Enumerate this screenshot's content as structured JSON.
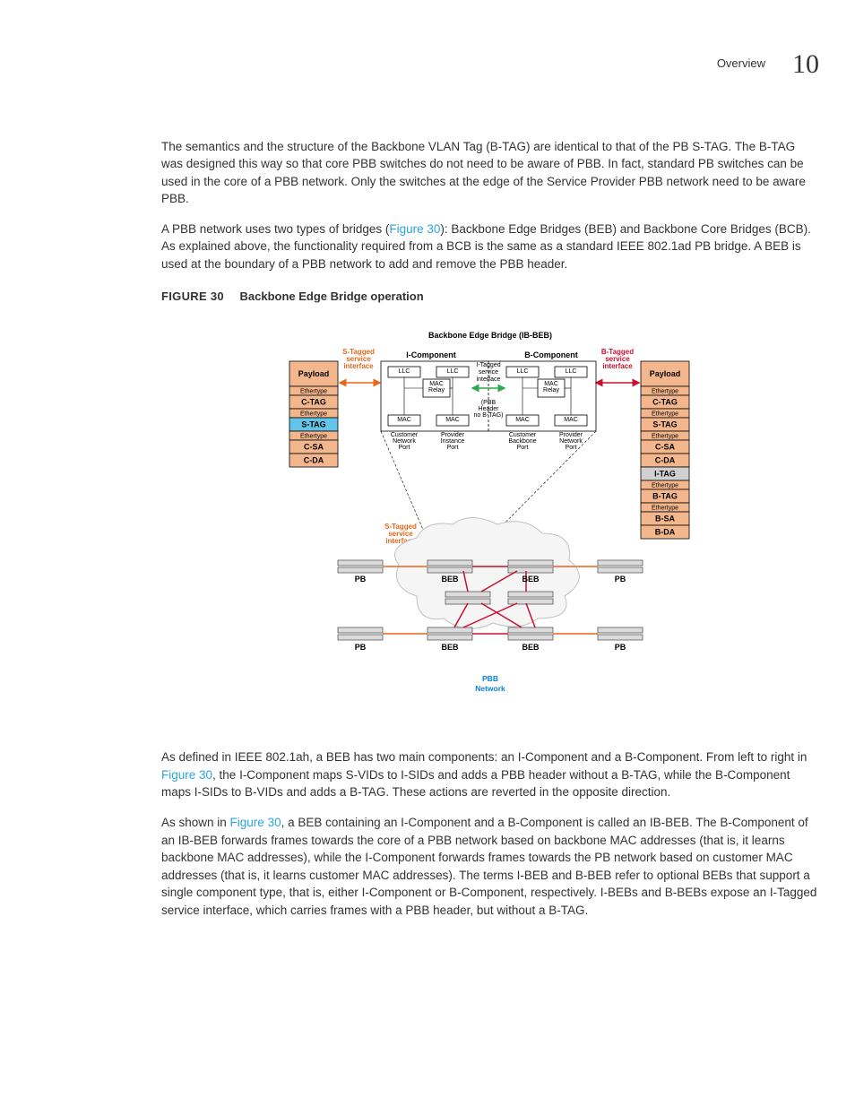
{
  "header": {
    "overview": "Overview",
    "page_num": "10"
  },
  "paragraphs": {
    "p1": "The semantics and the structure of the Backbone VLAN Tag (B-TAG) are identical to that of the PB S-TAG. The B-TAG was designed this way so that core PBB switches do not need to be aware of PBB. In fact, standard PB switches can be used in the core of a PBB network. Only the switches at the edge of the Service Provider PBB network need to be aware PBB.",
    "p2a": "A PBB network uses two types of bridges (",
    "p2link": "Figure 30",
    "p2b": "): Backbone Edge Bridges (BEB) and Backbone Core Bridges (BCB). As explained above, the functionality required from a BCB is the same as a standard IEEE 802.1ad PB bridge. A BEB is used at the boundary of a PBB network to add and remove the PBB header.",
    "p3a": "As defined in IEEE 802.1ah, a BEB has two main components: an I-Component and a B-Component. From left to right in ",
    "p3link": "Figure 30",
    "p3b": ", the I-Component maps S-VIDs to I-SIDs and adds a PBB header without a B-TAG, while the B-Component maps I-SIDs to B-VIDs and adds a B-TAG. These actions are reverted in the opposite direction.",
    "p4a": "As shown in ",
    "p4link": "Figure 30",
    "p4b": ", a BEB containing an I-Component and a B-Component is called an IB-BEB. The B-Component of an IB-BEB forwards frames towards the core of a PBB network based on backbone MAC addresses (that is, it learns backbone MAC addresses), while the I-Component forwards frames towards the PB network based on customer MAC addresses (that is, it learns customer MAC addresses). The terms I-BEB and B-BEB refer to optional BEBs that support a single component type, that is, either I-Component or B-Component, respectively. I-BEBs and B-BEBs expose an I-Tagged service interface, which carries frames with a PBB header, but without a B-TAG."
  },
  "figure": {
    "caption_prefix": "FIGURE 30",
    "caption_text": "Backbone Edge Bridge operation",
    "title": "Backbone Edge Bridge (IB-BEB)",
    "colors": {
      "payload": "#f4b78d",
      "ethertype": "#f4b78d",
      "ctag": "#f4b78d",
      "stag_blue": "#63c4e8",
      "stag_orange": "#f4b78d",
      "csa": "#f4b78d",
      "cda": "#f4b78d",
      "itag": "#d0d0d0",
      "btag": "#f4b78d",
      "bsa": "#f4b78d",
      "bda": "#f4b78d",
      "orange_text": "#e6671a",
      "red_text": "#c8102e",
      "blue_text": "#0b7fd7",
      "green_line": "#2fa84f",
      "red_line": "#c8102e",
      "orange_line": "#e6671a",
      "node_gray": "#dcdcdc"
    },
    "left_stack": [
      {
        "label": "Payload",
        "color": "payload",
        "h": 28
      },
      {
        "label": "Ethertype",
        "color": "ethertype",
        "h": 10,
        "sub": true
      },
      {
        "label": "C-TAG",
        "color": "ctag",
        "h": 15
      },
      {
        "label": "Ethertype",
        "color": "ethertype",
        "h": 10,
        "sub": true
      },
      {
        "label": "S-TAG",
        "color": "stag_blue",
        "h": 15
      },
      {
        "label": "Ethertype",
        "color": "ethertype",
        "h": 10,
        "sub": true
      },
      {
        "label": "C-SA",
        "color": "csa",
        "h": 15
      },
      {
        "label": "C-DA",
        "color": "cda",
        "h": 15
      }
    ],
    "right_stack": [
      {
        "label": "Payload",
        "color": "payload",
        "h": 28
      },
      {
        "label": "Ethertype",
        "color": "ethertype",
        "h": 10,
        "sub": true
      },
      {
        "label": "C-TAG",
        "color": "ctag",
        "h": 15
      },
      {
        "label": "Ethertype",
        "color": "ethertype",
        "h": 10,
        "sub": true
      },
      {
        "label": "S-TAG",
        "color": "stag_orange",
        "h": 15
      },
      {
        "label": "Ethertype",
        "color": "ethertype",
        "h": 10,
        "sub": true
      },
      {
        "label": "C-SA",
        "color": "csa",
        "h": 15
      },
      {
        "label": "C-DA",
        "color": "cda",
        "h": 15
      },
      {
        "label": "I-TAG",
        "color": "itag",
        "h": 15
      },
      {
        "label": "Ethertype",
        "color": "ethertype",
        "h": 10,
        "sub": true
      },
      {
        "label": "B-TAG",
        "color": "btag",
        "h": 15
      },
      {
        "label": "Ethertype",
        "color": "ethertype",
        "h": 10,
        "sub": true
      },
      {
        "label": "B-SA",
        "color": "bsa",
        "h": 15
      },
      {
        "label": "B-DA",
        "color": "bda",
        "h": 15
      }
    ],
    "labels": {
      "s_tagged": "S-Tagged",
      "service": "service",
      "interface": "interface",
      "b_tagged": "B-Tagged",
      "i_comp": "I-Component",
      "b_comp": "B-Component",
      "i_tagged": "I-Tagged",
      "i_svc": "service",
      "i_if": "interface",
      "llc": "LLC",
      "mac_relay": "MAC\nRelay",
      "mac": "MAC",
      "pbb_hdr_l1": "(PBB",
      "pbb_hdr_l2": "Header",
      "pbb_hdr_l3": "no B-TAG)",
      "cust_net": "Customer\nNetwork\nPort",
      "prov_inst": "Provider\nInstance\nPort",
      "cust_bb": "Customer\nBackbone\nPort",
      "prov_net": "Provider\nNetwork\nPort",
      "pb": "PB",
      "beb": "BEB",
      "pbb": "PBB",
      "network": "Network"
    }
  }
}
